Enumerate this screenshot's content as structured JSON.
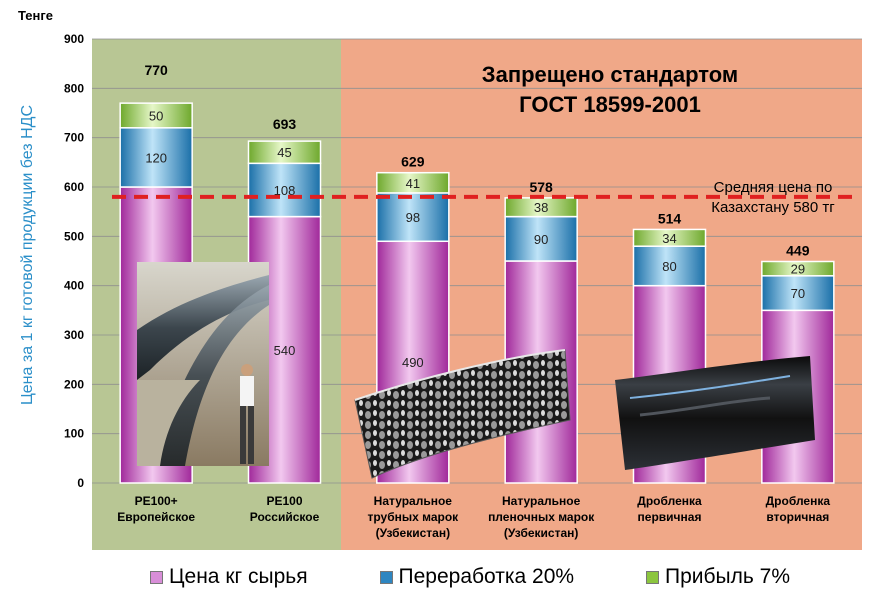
{
  "chart_data": {
    "type": "bar",
    "stacked": true,
    "y_unit": "Тенге",
    "ylabel": "Цена за 1 кг готовой продукции без НДС",
    "ylim": [
      0,
      900
    ],
    "yticks": [
      0,
      100,
      200,
      300,
      400,
      500,
      600,
      700,
      800,
      900
    ],
    "categories": [
      "PE100+\nЕвропейское",
      "PE100\nРоссийское",
      "Натуральное\nтрубных марок\n(Узбекистан)",
      "Натуральное\nпленочных марок\n(Узбекистан)",
      "Дробленка\nпервичная",
      "Дробленка\nвторичная"
    ],
    "series": [
      {
        "name": "Цена кг сырья",
        "values": [
          600,
          540,
          490,
          450,
          400,
          350
        ],
        "color": "#d88ed8"
      },
      {
        "name": "Переработка 20%",
        "values": [
          120,
          108,
          98,
          90,
          80,
          70
        ],
        "color": "#2e86c1"
      },
      {
        "name": "Прибыль 7%",
        "values": [
          50,
          45,
          41,
          38,
          34,
          29
        ],
        "color": "#8cc63f"
      }
    ],
    "totals": [
      770,
      693,
      629,
      578,
      514,
      449
    ],
    "reference_line": {
      "value": 580,
      "label_line1": "Средняя цена по",
      "label_line2": "Казахстану 580 тг",
      "color": "#e02020"
    },
    "banner": {
      "line1": "Запрещено стандартом",
      "line2": "ГОСТ 18599-2001"
    },
    "regions": {
      "allowed_color": "#b8c694",
      "forbidden_color": "#f0a888"
    },
    "grid": true,
    "legend_position": "bottom"
  }
}
